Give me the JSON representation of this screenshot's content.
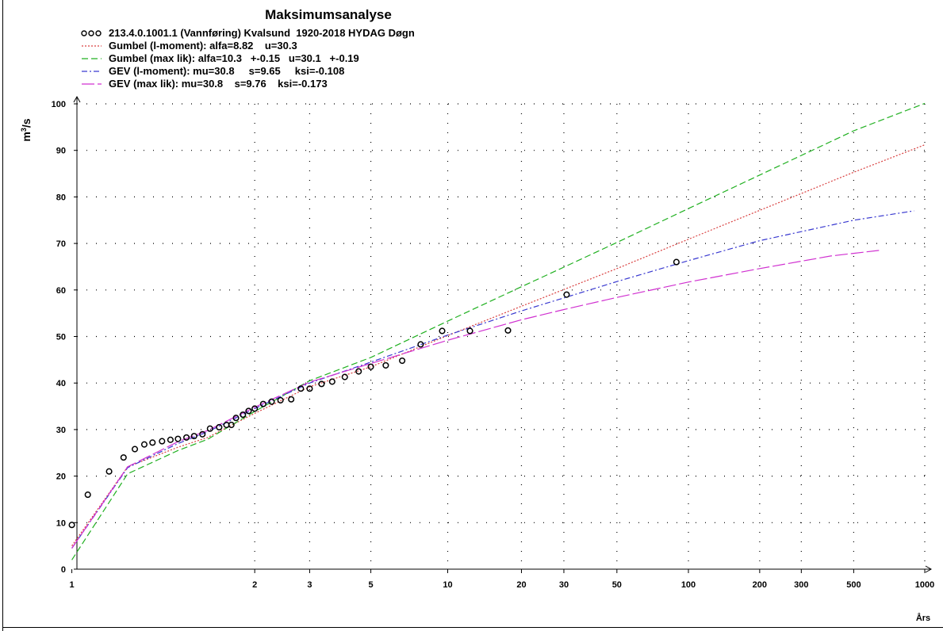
{
  "chart_data": {
    "type": "line",
    "title": "Maksimumsanalyse",
    "ylabel_base": "m",
    "ylabel_exp": "3",
    "ylabel_tail": "/s",
    "xlabel": "Års",
    "x_scale": "gumbel-return-period",
    "xlim": [
      1,
      1000
    ],
    "ylim": [
      0,
      100
    ],
    "grid": true,
    "legend_position": "top-left",
    "x_ticks": [
      {
        "value": 1,
        "label": "1"
      },
      {
        "value": 2,
        "label": "2"
      },
      {
        "value": 3,
        "label": "3"
      },
      {
        "value": 5,
        "label": "5"
      },
      {
        "value": 10,
        "label": "10"
      },
      {
        "value": 20,
        "label": "20"
      },
      {
        "value": 30,
        "label": "30"
      },
      {
        "value": 50,
        "label": "50"
      },
      {
        "value": 100,
        "label": "100"
      },
      {
        "value": 200,
        "label": "200"
      },
      {
        "value": 300,
        "label": "300"
      },
      {
        "value": 500,
        "label": "500"
      },
      {
        "value": 1000,
        "label": "1000"
      }
    ],
    "y_ticks": [
      {
        "value": 0,
        "label": "0"
      },
      {
        "value": 10,
        "label": "10"
      },
      {
        "value": 20,
        "label": "20"
      },
      {
        "value": 30,
        "label": "30"
      },
      {
        "value": 40,
        "label": "40"
      },
      {
        "value": 50,
        "label": "50"
      },
      {
        "value": 60,
        "label": "60"
      },
      {
        "value": 70,
        "label": "70"
      },
      {
        "value": 80,
        "label": "80"
      },
      {
        "value": 90,
        "label": "90"
      },
      {
        "value": 100,
        "label": "100"
      }
    ],
    "observations": {
      "name": "213.4.0.1001.1 (Vannføring) Kvalsund  1920-2018 HYDAG Døgn",
      "color": "#000000",
      "points": [
        {
          "x": 1.0,
          "y": 9.5
        },
        {
          "x": 1.03,
          "y": 16.0
        },
        {
          "x": 1.06,
          "y": 21.0
        },
        {
          "x": 1.09,
          "y": 24.0
        },
        {
          "x": 1.12,
          "y": 25.8
        },
        {
          "x": 1.15,
          "y": 26.8
        },
        {
          "x": 1.18,
          "y": 27.2
        },
        {
          "x": 1.22,
          "y": 27.5
        },
        {
          "x": 1.26,
          "y": 27.8
        },
        {
          "x": 1.3,
          "y": 28.0
        },
        {
          "x": 1.35,
          "y": 28.3
        },
        {
          "x": 1.4,
          "y": 28.6
        },
        {
          "x": 1.46,
          "y": 29.0
        },
        {
          "x": 1.52,
          "y": 30.2
        },
        {
          "x": 1.6,
          "y": 30.5
        },
        {
          "x": 1.67,
          "y": 31.0
        },
        {
          "x": 1.72,
          "y": 31.0
        },
        {
          "x": 1.77,
          "y": 32.5
        },
        {
          "x": 1.85,
          "y": 33.2
        },
        {
          "x": 1.92,
          "y": 34.0
        },
        {
          "x": 2.0,
          "y": 34.5
        },
        {
          "x": 2.12,
          "y": 35.5
        },
        {
          "x": 2.25,
          "y": 36.0
        },
        {
          "x": 2.4,
          "y": 36.3
        },
        {
          "x": 2.6,
          "y": 36.5
        },
        {
          "x": 2.8,
          "y": 38.8
        },
        {
          "x": 3.0,
          "y": 38.8
        },
        {
          "x": 3.3,
          "y": 39.8
        },
        {
          "x": 3.6,
          "y": 40.3
        },
        {
          "x": 4.0,
          "y": 41.3
        },
        {
          "x": 4.5,
          "y": 42.5
        },
        {
          "x": 5.0,
          "y": 43.5
        },
        {
          "x": 5.7,
          "y": 43.8
        },
        {
          "x": 6.6,
          "y": 44.8
        },
        {
          "x": 7.8,
          "y": 48.3
        },
        {
          "x": 9.5,
          "y": 51.2
        },
        {
          "x": 12.3,
          "y": 51.2
        },
        {
          "x": 17.6,
          "y": 51.3
        },
        {
          "x": 30.8,
          "y": 59.0
        },
        {
          "x": 89.0,
          "y": 66.0
        }
      ]
    },
    "series": [
      {
        "name": "Gumbel (l-moment): alfa=8.82    u=30.3",
        "color": "#d94040",
        "dash": "2,2",
        "x": [
          1.0,
          1.1,
          1.3,
          1.5,
          2,
          3,
          5,
          10,
          20,
          30,
          50,
          100,
          200,
          500,
          1000
        ],
        "values": [
          5.0,
          22.0,
          26.2,
          28.3,
          33.5,
          39.2,
          43.5,
          50.2,
          56.5,
          60.1,
          64.6,
          70.9,
          77.1,
          85.3,
          91.2
        ]
      },
      {
        "name": "Gumbel (max lik): alfa=10.3   +-0.15   u=30.1   +-0.19",
        "color": "#20b020",
        "dash": "8,4",
        "x": [
          1.0,
          1.1,
          1.3,
          1.5,
          2,
          3,
          5,
          10,
          20,
          30,
          50,
          100,
          200,
          500,
          1000
        ],
        "values": [
          2.0,
          20.5,
          25.5,
          27.9,
          33.9,
          40.5,
          45.5,
          53.3,
          60.7,
          64.9,
          70.2,
          77.5,
          84.7,
          94.2,
          100.1
        ]
      },
      {
        "name": "GEV (l-moment): mu=30.8     s=9.65     ksi=-0.108",
        "color": "#3a3ad0",
        "dash": "7,3,2,3",
        "x": [
          1.0,
          1.1,
          1.3,
          1.5,
          2,
          3,
          5,
          10,
          20,
          30,
          50,
          100,
          200,
          500,
          900
        ],
        "values": [
          4.5,
          21.8,
          27.0,
          29.5,
          34.5,
          40.0,
          44.5,
          50.3,
          55.5,
          58.3,
          61.8,
          66.3,
          70.6,
          75.0,
          77.0
        ]
      },
      {
        "name": "GEV (max lik): mu=30.8    s=9.76    ksi=-0.173",
        "color": "#d030d0",
        "dash": "16,4",
        "x": [
          1.0,
          1.1,
          1.3,
          1.5,
          2,
          3,
          5,
          10,
          20,
          30,
          50,
          100,
          200,
          400,
          640
        ],
        "values": [
          4.5,
          22.0,
          27.4,
          29.8,
          34.8,
          40.2,
          44.2,
          49.2,
          53.6,
          55.8,
          58.4,
          61.7,
          64.6,
          67.3,
          68.5
        ]
      }
    ]
  }
}
